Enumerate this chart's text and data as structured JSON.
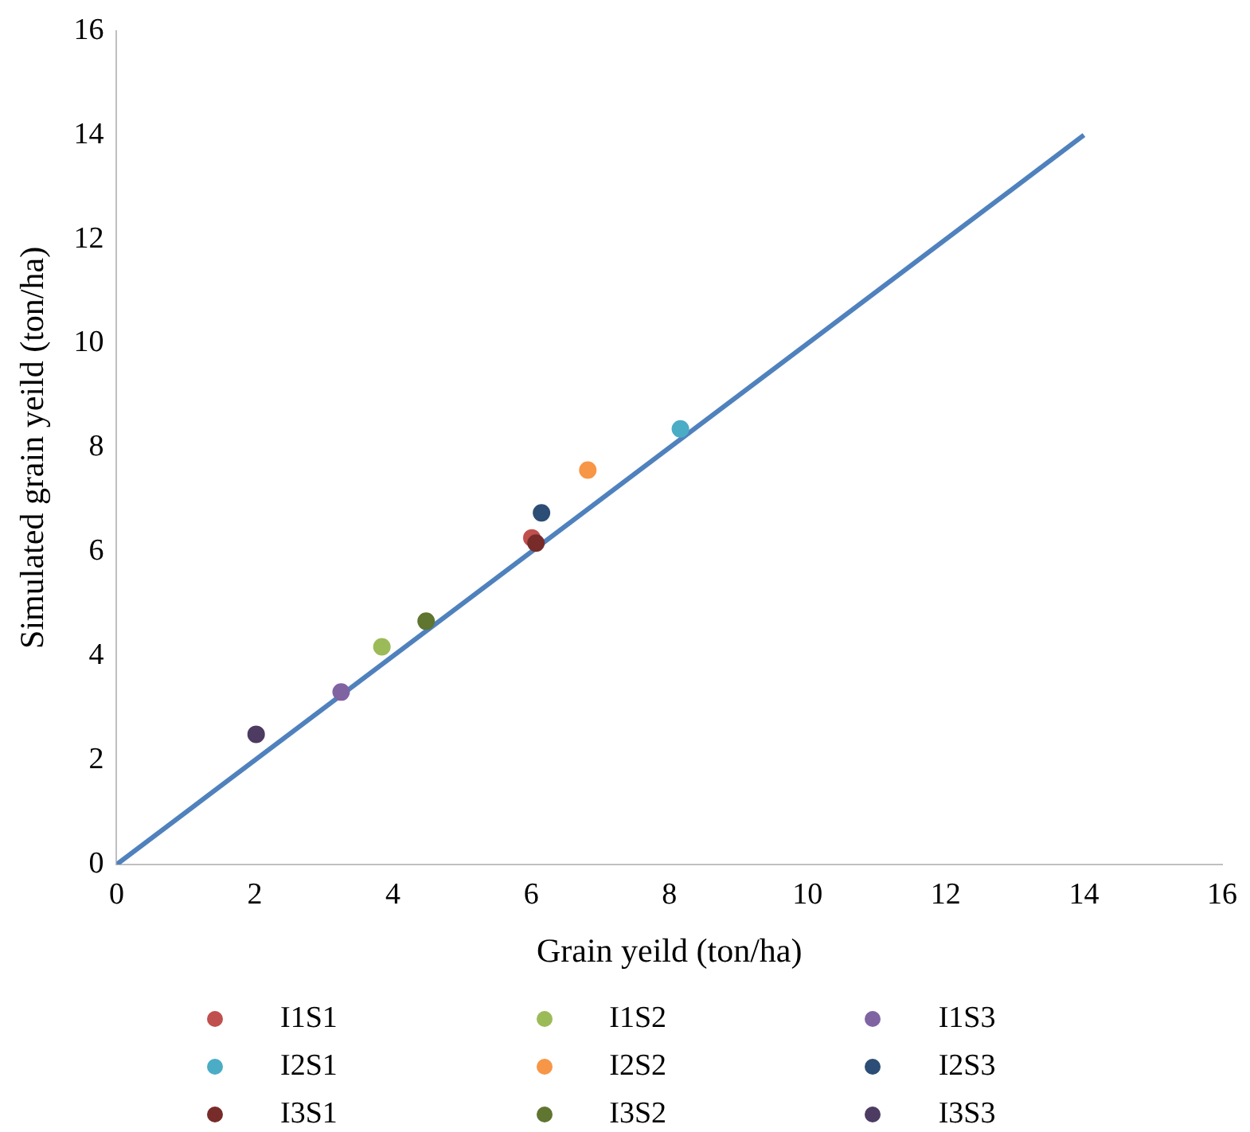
{
  "chart_data": {
    "type": "scatter",
    "xlabel": "Grain yeild (ton/ha)",
    "ylabel": "Simulated grain yeild (ton/ha)",
    "xlim": [
      0,
      16
    ],
    "ylim": [
      0,
      16
    ],
    "xticks": [
      0,
      2,
      4,
      6,
      8,
      10,
      12,
      14,
      16
    ],
    "yticks": [
      0,
      2,
      4,
      6,
      8,
      10,
      12,
      14,
      16
    ],
    "grid": false,
    "legend": "bottom",
    "marker": "circle",
    "series": [
      {
        "name": "I1S1",
        "color": "#c0504d",
        "x": [
          6.01
        ],
        "values": [
          6.27
        ]
      },
      {
        "name": "I1S2",
        "color": "#9bbb59",
        "x": [
          3.84
        ],
        "values": [
          4.18
        ]
      },
      {
        "name": "I1S3",
        "color": "#8064a2",
        "x": [
          3.25
        ],
        "values": [
          3.31
        ]
      },
      {
        "name": "I2S1",
        "color": "#4bacc6",
        "x": [
          8.16
        ],
        "values": [
          8.36
        ]
      },
      {
        "name": "I2S2",
        "color": "#f79646",
        "x": [
          6.82
        ],
        "values": [
          7.57
        ]
      },
      {
        "name": "I2S3",
        "color": "#2c4d75",
        "x": [
          6.15
        ],
        "values": [
          6.75
        ]
      },
      {
        "name": "I3S1",
        "color": "#772c2a",
        "x": [
          6.07
        ],
        "values": [
          6.17
        ]
      },
      {
        "name": "I3S2",
        "color": "#5f7530",
        "x": [
          4.48
        ],
        "values": [
          4.67
        ]
      },
      {
        "name": "I3S3",
        "color": "#4d3b62",
        "x": [
          2.02
        ],
        "values": [
          2.5
        ]
      },
      {
        "type": "line",
        "color": "#4f81bd",
        "x": [
          0,
          14
        ],
        "values": [
          0,
          14
        ],
        "marker": "none",
        "line_style": "solid"
      }
    ]
  }
}
